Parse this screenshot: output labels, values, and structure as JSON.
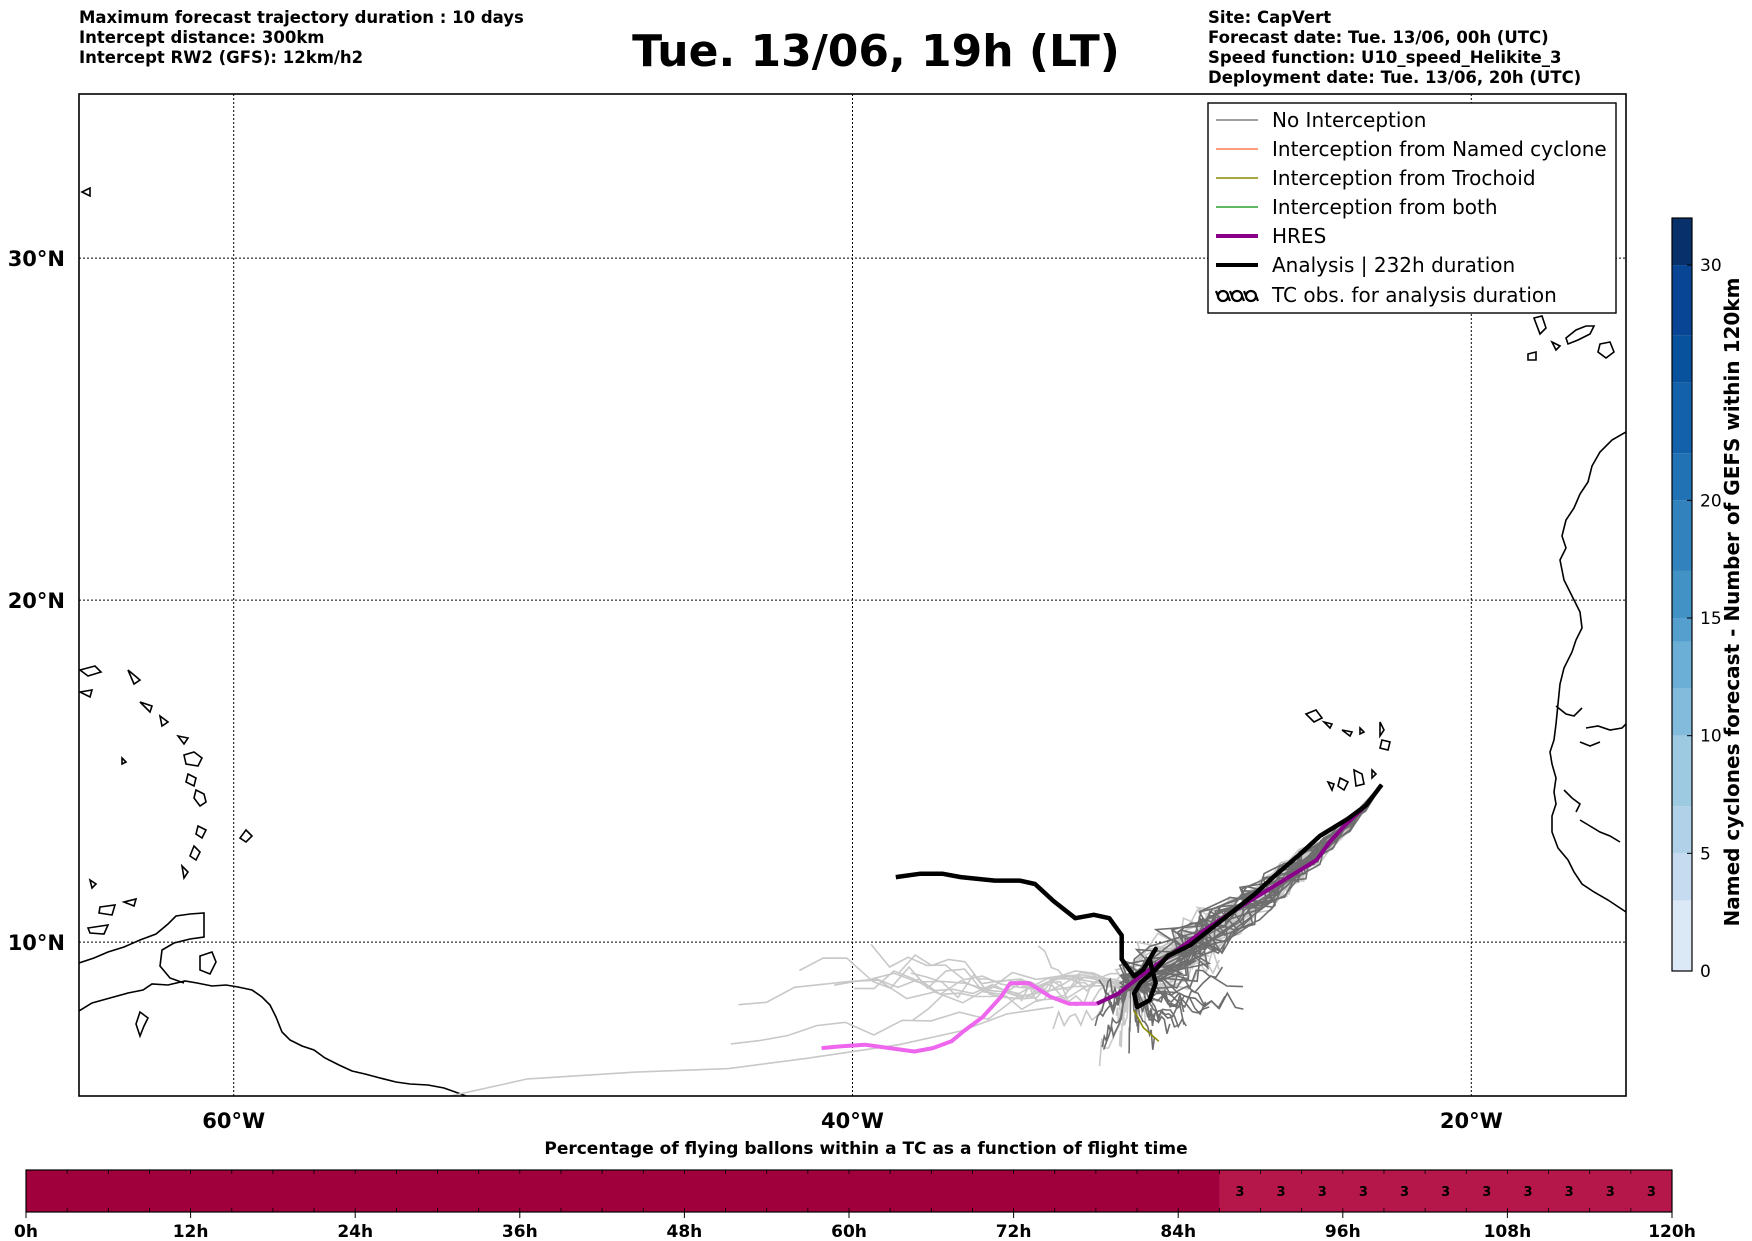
{
  "header": {
    "left_lines": [
      "Maximum forecast trajectory duration : 10 days",
      "Intercept distance: 300km",
      "Intercept RW2 (GFS):  12km/h2"
    ],
    "title": "Tue. 13/06, 19h (LT)",
    "right_lines": [
      "Site: CapVert",
      "Forecast date: Tue. 13/06, 00h (UTC)",
      "Speed function: U10_speed_Helikite_3",
      "Deployment date: Tue. 13/06, 20h (UTC)"
    ]
  },
  "colors": {
    "no_interception": "#808080",
    "named_cyclone": "#ff7f50",
    "trochoid": "#8b8b00",
    "both": "#2ca02c",
    "hres": "#8b008b",
    "hres_light": "#ee66ee",
    "analysis": "#000000",
    "ensemble_light": "#c8c8c8",
    "ensemble_dark": "#6e6e6e",
    "flying_bar": "#a0003c",
    "tc_bar": "#b5174a"
  },
  "chart_data": {
    "type": "line",
    "subtype": "map-trajectories",
    "x_axis": {
      "range": [
        -65,
        -15
      ],
      "ticks": [
        -60,
        -40,
        -20
      ],
      "tick_labels": [
        "60°W",
        "40°W",
        "20°W"
      ]
    },
    "y_axis": {
      "range": [
        5.5,
        34.8
      ],
      "ticks": [
        10,
        20,
        30
      ],
      "tick_labels": [
        "10°N",
        "20°N",
        "30°N"
      ]
    },
    "grid": true,
    "legend_position": "top-right",
    "legend": [
      {
        "label": "No Interception",
        "key": "no_interception",
        "style": "line"
      },
      {
        "label": "Interception from Named cyclone",
        "key": "named_cyclone",
        "style": "line"
      },
      {
        "label": "Interception from Trochoid",
        "key": "trochoid",
        "style": "line"
      },
      {
        "label": "Interception from both",
        "key": "both",
        "style": "line"
      },
      {
        "label": "HRES",
        "key": "hres",
        "style": "thick"
      },
      {
        "label": "Analysis | 232h duration",
        "key": "analysis",
        "style": "thick"
      },
      {
        "label": "TC obs. for analysis duration",
        "key": "tc_obs",
        "style": "symbol"
      }
    ],
    "series": [
      {
        "name": "Analysis | 232h duration",
        "points": [
          [
            -22.9,
            14.6
          ],
          [
            -23.4,
            14.0
          ],
          [
            -24.0,
            13.6
          ],
          [
            -24.9,
            13.1
          ],
          [
            -25.5,
            12.6
          ],
          [
            -26.4,
            11.9
          ],
          [
            -27.0,
            11.4
          ],
          [
            -27.7,
            10.9
          ],
          [
            -28.4,
            10.4
          ],
          [
            -29.1,
            9.9
          ],
          [
            -29.8,
            9.6
          ],
          [
            -30.2,
            9.2
          ],
          [
            -30.7,
            8.8
          ],
          [
            -30.9,
            8.5
          ],
          [
            -30.8,
            8.1
          ],
          [
            -30.4,
            8.3
          ],
          [
            -30.2,
            8.8
          ],
          [
            -30.4,
            9.5
          ],
          [
            -30.2,
            9.8
          ],
          [
            -30.6,
            9.2
          ],
          [
            -30.9,
            9.0
          ],
          [
            -31.3,
            9.5
          ],
          [
            -31.3,
            10.2
          ],
          [
            -31.7,
            10.7
          ],
          [
            -32.2,
            10.8
          ],
          [
            -32.8,
            10.7
          ],
          [
            -33.5,
            11.2
          ],
          [
            -34.1,
            11.7
          ],
          [
            -34.6,
            11.8
          ],
          [
            -35.4,
            11.8
          ],
          [
            -36.5,
            11.9
          ],
          [
            -37.1,
            12.0
          ],
          [
            -37.8,
            12.0
          ],
          [
            -38.6,
            11.9
          ]
        ]
      },
      {
        "name": "HRES",
        "points": [
          [
            -22.9,
            14.6
          ],
          [
            -23.4,
            14.0
          ],
          [
            -24.1,
            13.4
          ],
          [
            -24.6,
            12.9
          ],
          [
            -25.0,
            12.4
          ],
          [
            -25.9,
            11.9
          ],
          [
            -26.8,
            11.4
          ],
          [
            -27.7,
            10.9
          ],
          [
            -28.7,
            10.3
          ],
          [
            -29.6,
            9.7
          ],
          [
            -30.7,
            9.0
          ],
          [
            -31.4,
            8.5
          ],
          [
            -32.1,
            8.2
          ],
          [
            -33.0,
            8.2
          ],
          [
            -33.6,
            8.4
          ],
          [
            -34.3,
            8.8
          ],
          [
            -34.9,
            8.8
          ],
          [
            -35.2,
            8.4
          ],
          [
            -35.8,
            7.8
          ],
          [
            -36.4,
            7.4
          ],
          [
            -36.8,
            7.1
          ],
          [
            -37.4,
            6.9
          ],
          [
            -38.0,
            6.8
          ],
          [
            -38.8,
            6.9
          ],
          [
            -39.6,
            7.0
          ],
          [
            -40.4,
            6.95
          ],
          [
            -41.0,
            6.9
          ]
        ]
      }
    ]
  },
  "colorbar": {
    "label": "Named cyclones forecast - Number of GEFS within 120km",
    "ticks": [
      "0",
      "5",
      "10",
      "15",
      "20",
      "30"
    ],
    "tick_values": [
      0,
      5,
      10,
      15,
      20,
      30
    ],
    "vmin": 0,
    "vmax": 32
  },
  "bottom_bar": {
    "title": "Percentage of flying ballons within a TC as a function of flight time",
    "tick_labels": [
      "0h",
      "12h",
      "24h",
      "36h",
      "48h",
      "60h",
      "72h",
      "84h",
      "96h",
      "108h",
      "120h"
    ],
    "max_hours": 120,
    "tc_start_hour": 87,
    "values": [
      "3",
      "3",
      "3",
      "3",
      "3",
      "3",
      "3",
      "3",
      "3",
      "3",
      "3"
    ]
  }
}
